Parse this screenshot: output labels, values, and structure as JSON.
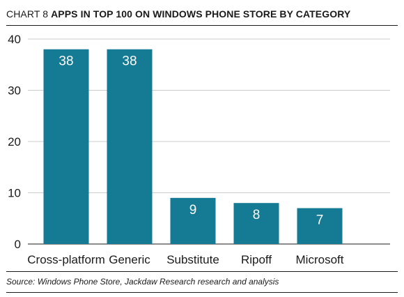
{
  "title": {
    "prefix": "CHART 8",
    "main": "APPS IN TOP 100 ON WINDOWS PHONE STORE BY CATEGORY"
  },
  "source": "Source: Windows Phone Store, Jackdaw Research research and analysis",
  "colors": {
    "bar": "#157a93",
    "grid": "#cccccc",
    "axis": "#1a1a1a",
    "label": "#ffffff"
  },
  "chart_data": {
    "type": "bar",
    "categories": [
      "Cross-platform",
      "Generic",
      "Substitute",
      "Ripoff",
      "Microsoft"
    ],
    "values": [
      38,
      38,
      9,
      8,
      7
    ],
    "data_labels": [
      "38",
      "38",
      "9",
      "8",
      "7"
    ],
    "xlabel": "",
    "ylabel": "",
    "ylim": [
      0,
      40
    ],
    "yticks": [
      0,
      10,
      20,
      30,
      40
    ],
    "grid": true
  }
}
